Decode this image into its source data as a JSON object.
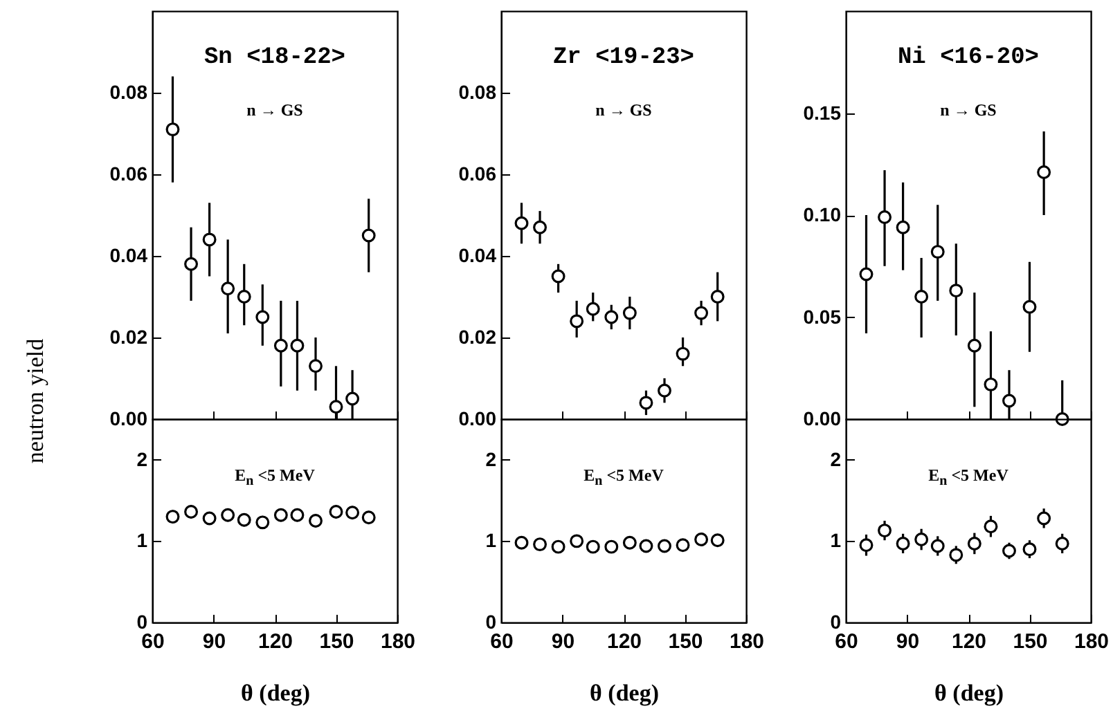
{
  "chart_data": [
    {
      "type": "scatter",
      "title": "Sn <18-22>",
      "annotations": [
        "n → GS"
      ],
      "ylabel": "neutron yield",
      "color": "#000000",
      "marker": "circle",
      "tick_labels": "y",
      "xlim": [
        60,
        180
      ],
      "xticks": [
        60,
        90,
        120,
        150,
        180
      ],
      "ylim": [
        0,
        0.1
      ],
      "yticks": [
        {
          "value": 0,
          "label": "0.00"
        },
        {
          "value": 0.02,
          "label": "0.02"
        },
        {
          "value": 0.04,
          "label": "0.04"
        },
        {
          "value": 0.06,
          "label": "0.06"
        },
        {
          "value": 0.08,
          "label": "0.08"
        }
      ],
      "x": [
        70,
        79,
        88,
        97,
        105,
        114,
        123,
        131,
        140,
        150,
        158,
        166
      ],
      "values": [
        0.071,
        0.038,
        0.044,
        0.032,
        0.03,
        0.025,
        0.018,
        0.018,
        0.013,
        0.003,
        0.005,
        0.045
      ],
      "errors": [
        [
          0.058,
          0.084
        ],
        [
          0.029,
          0.047
        ],
        [
          0.035,
          0.053
        ],
        [
          0.021,
          0.044
        ],
        [
          0.023,
          0.038
        ],
        [
          0.018,
          0.033
        ],
        [
          0.008,
          0.029
        ],
        [
          0.007,
          0.029
        ],
        [
          0.007,
          0.02
        ],
        [
          0,
          0.013
        ],
        [
          0,
          0.012
        ],
        [
          0.036,
          0.054
        ]
      ]
    },
    {
      "type": "scatter",
      "title": "Zr <19-23>",
      "annotations": [
        "n → GS"
      ],
      "color": "#000000",
      "marker": "circle",
      "tick_labels": "y",
      "xlim": [
        60,
        180
      ],
      "xticks": [
        60,
        90,
        120,
        150,
        180
      ],
      "ylim": [
        0,
        0.1
      ],
      "yticks": [
        {
          "value": 0,
          "label": "0.00"
        },
        {
          "value": 0.02,
          "label": "0.02"
        },
        {
          "value": 0.04,
          "label": "0.04"
        },
        {
          "value": 0.06,
          "label": "0.06"
        },
        {
          "value": 0.08,
          "label": "0.08"
        }
      ],
      "x": [
        70,
        79,
        88,
        97,
        105,
        114,
        123,
        131,
        140,
        149,
        158,
        166
      ],
      "values": [
        0.048,
        0.047,
        0.035,
        0.024,
        0.027,
        0.025,
        0.026,
        0.004,
        0.007,
        0.016,
        0.026,
        0.03
      ],
      "errors": [
        [
          0.043,
          0.053
        ],
        [
          0.043,
          0.051
        ],
        [
          0.031,
          0.038
        ],
        [
          0.02,
          0.029
        ],
        [
          0.024,
          0.031
        ],
        [
          0.022,
          0.028
        ],
        [
          0.022,
          0.03
        ],
        [
          0.001,
          0.007
        ],
        [
          0.004,
          0.01
        ],
        [
          0.013,
          0.02
        ],
        [
          0.023,
          0.029
        ],
        [
          0.024,
          0.036
        ]
      ]
    },
    {
      "type": "scatter",
      "title": "Ni <16-20>",
      "annotations": [
        "n → GS"
      ],
      "color": "#000000",
      "marker": "circle",
      "tick_labels": "y",
      "xlim": [
        60,
        180
      ],
      "xticks": [
        60,
        90,
        120,
        150,
        180
      ],
      "ylim": [
        0,
        0.2
      ],
      "yticks": [
        {
          "value": 0,
          "label": "0.00"
        },
        {
          "value": 0.05,
          "label": "0.05"
        },
        {
          "value": 0.1,
          "label": "0.10"
        },
        {
          "value": 0.15,
          "label": "0.15"
        }
      ],
      "x": [
        70,
        79,
        88,
        97,
        105,
        114,
        123,
        131,
        140,
        150,
        157,
        166
      ],
      "values": [
        0.071,
        0.099,
        0.094,
        0.06,
        0.082,
        0.063,
        0.036,
        0.017,
        0.009,
        0.055,
        0.121,
        0
      ],
      "errors": [
        [
          0.042,
          0.1
        ],
        [
          0.075,
          0.122
        ],
        [
          0.073,
          0.116
        ],
        [
          0.04,
          0.079
        ],
        [
          0.058,
          0.105
        ],
        [
          0.041,
          0.086
        ],
        [
          0.006,
          0.062
        ],
        [
          0,
          0.043
        ],
        [
          0,
          0.024
        ],
        [
          0.033,
          0.077
        ],
        [
          0.1,
          0.141
        ],
        [
          0,
          0.019
        ]
      ]
    },
    {
      "type": "scatter",
      "annotations": [
        "E$_{n}$ <5 MeV"
      ],
      "xlabel": "θ (deg)",
      "color": "#000000",
      "marker": "circle",
      "xlim": [
        60,
        180
      ],
      "xticks": [
        60,
        90,
        120,
        150,
        180
      ],
      "ylim": [
        0,
        2.5
      ],
      "yticks": [
        0,
        1,
        2
      ],
      "x": [
        70,
        79,
        88,
        97,
        105,
        114,
        123,
        131,
        140,
        150,
        158,
        166
      ],
      "values": [
        1.3,
        1.36,
        1.28,
        1.32,
        1.26,
        1.23,
        1.32,
        1.32,
        1.25,
        1.36,
        1.35,
        1.29
      ],
      "errors": [
        0.08,
        0.08,
        0.08,
        0.08,
        0.08,
        0.08,
        0.08,
        0.08,
        0.08,
        0.08,
        0.08,
        0.08
      ]
    },
    {
      "type": "scatter",
      "annotations": [
        "E$_{n}$ <5 MeV"
      ],
      "xlabel": "θ (deg)",
      "color": "#000000",
      "marker": "circle",
      "xlim": [
        60,
        180
      ],
      "xticks": [
        60,
        90,
        120,
        150,
        180
      ],
      "ylim": [
        0,
        2.5
      ],
      "yticks": [
        0,
        1,
        2
      ],
      "x": [
        70,
        79,
        88,
        97,
        105,
        114,
        123,
        131,
        140,
        149,
        158,
        166
      ],
      "values": [
        0.98,
        0.96,
        0.93,
        1.0,
        0.93,
        0.93,
        0.98,
        0.94,
        0.94,
        0.95,
        1.02,
        1.01
      ],
      "errors": [
        0.05,
        0.05,
        0.05,
        0.05,
        0.05,
        0.05,
        0.05,
        0.05,
        0.05,
        0.05,
        0.05,
        0.05
      ]
    },
    {
      "type": "scatter",
      "annotations": [
        "E$_{n}$ <5 MeV"
      ],
      "xlabel": "θ (deg)",
      "color": "#000000",
      "marker": "circle",
      "xlim": [
        60,
        180
      ],
      "xticks": [
        60,
        90,
        120,
        150,
        180
      ],
      "ylim": [
        0,
        2.5
      ],
      "yticks": [
        0,
        1,
        2
      ],
      "x": [
        70,
        79,
        88,
        97,
        105,
        114,
        123,
        131,
        140,
        150,
        157,
        166
      ],
      "values": [
        0.95,
        1.13,
        0.97,
        1.02,
        0.94,
        0.83,
        0.97,
        1.18,
        0.88,
        0.9,
        1.28,
        0.97
      ],
      "errors": [
        0.13,
        0.12,
        0.12,
        0.13,
        0.12,
        0.11,
        0.13,
        0.13,
        0.1,
        0.11,
        0.12,
        0.12
      ]
    }
  ]
}
